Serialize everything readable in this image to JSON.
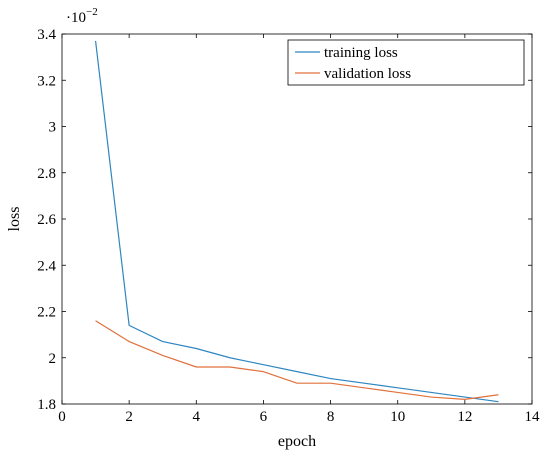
{
  "chart_data": {
    "type": "line",
    "xlabel": "epoch",
    "ylabel": "loss",
    "y_scale_factor_label": "·10",
    "y_scale_factor_exponent": "−2",
    "xlim": [
      0,
      14
    ],
    "ylim": [
      1.8,
      3.4
    ],
    "x_ticks": [
      0,
      2,
      4,
      6,
      8,
      10,
      12,
      14
    ],
    "x_tick_labels": [
      "0",
      "2",
      "4",
      "6",
      "8",
      "10",
      "12",
      "14"
    ],
    "y_ticks": [
      1.8,
      2.0,
      2.2,
      2.4,
      2.6,
      2.8,
      3.0,
      3.2,
      3.4
    ],
    "y_tick_labels": [
      "1.8",
      "2",
      "2.2",
      "2.4",
      "2.6",
      "2.8",
      "3",
      "3.2",
      "3.4"
    ],
    "grid": false,
    "legend_position": "top-right",
    "series": [
      {
        "name": "training loss",
        "color": "#2e86c1",
        "x": [
          1,
          2,
          3,
          4,
          5,
          6,
          7,
          8,
          9,
          10,
          11,
          12,
          13
        ],
        "y": [
          3.37,
          2.14,
          2.07,
          2.04,
          2.0,
          1.97,
          1.94,
          1.91,
          1.89,
          1.87,
          1.85,
          1.83,
          1.81
        ]
      },
      {
        "name": "validation loss",
        "color": "#e0713c",
        "x": [
          1,
          2,
          3,
          4,
          5,
          6,
          7,
          8,
          9,
          10,
          11,
          12,
          13
        ],
        "y": [
          2.16,
          2.07,
          2.01,
          1.96,
          1.96,
          1.94,
          1.89,
          1.89,
          1.87,
          1.85,
          1.83,
          1.82,
          1.84
        ]
      }
    ]
  }
}
